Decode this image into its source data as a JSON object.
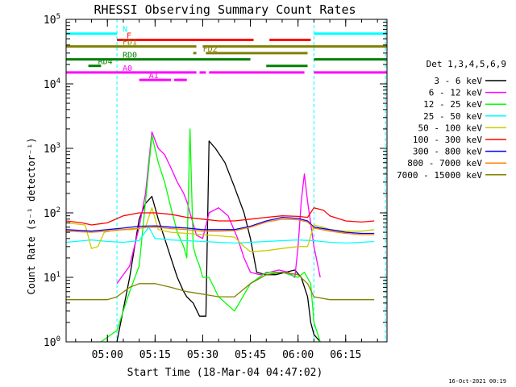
{
  "chart_data": {
    "type": "line",
    "title": "RHESSI Observing Summary Count Rates",
    "xlabel": "Start Time (18-Mar-04 04:47:02)",
    "ylabel": "Count Rate (s⁻¹ detector⁻¹)",
    "y_scale": "log",
    "xlim": [
      "04:47",
      "06:28"
    ],
    "ylim": [
      1,
      100000
    ],
    "x_ticks": [
      "05:00",
      "05:15",
      "05:30",
      "05:45",
      "06:00",
      "06:15"
    ],
    "y_ticks": [
      {
        "base": "10",
        "exp": "0"
      },
      {
        "base": "10",
        "exp": "1"
      },
      {
        "base": "10",
        "exp": "2"
      },
      {
        "base": "10",
        "exp": "3"
      },
      {
        "base": "10",
        "exp": "4"
      },
      {
        "base": "10",
        "exp": "5"
      }
    ],
    "legend_title": "Det 1,3,4,5,6,9",
    "legend_position": "right",
    "footer_date": "16-Oct-2021 00:19",
    "colors": {
      "night": "#00ffff",
      "flare": "#ff0000",
      "decimation": "#808000",
      "attenuator": "#ff00ff",
      "rad": "#008000"
    },
    "flags": [
      {
        "label": "N",
        "color": "#00ffff",
        "y": 60000,
        "segments": [
          [
            "04:47",
            "05:03"
          ],
          [
            "06:05",
            "06:28"
          ]
        ]
      },
      {
        "label": "F",
        "color": "#ff0000",
        "y": 48000,
        "segments": [
          [
            "05:03",
            "05:46"
          ],
          [
            "05:51",
            "06:04"
          ]
        ]
      },
      {
        "label": "FD1",
        "color": "#808000",
        "y": 38000,
        "segments": [
          [
            "04:47",
            "05:28"
          ],
          [
            "05:30",
            "06:28"
          ]
        ]
      },
      {
        "label": "FD2",
        "color": "#808000",
        "y": 30000,
        "segments": [
          [
            "05:27",
            "05:28"
          ],
          [
            "05:31",
            "06:03"
          ]
        ]
      },
      {
        "label": "RD0",
        "color": "#008000",
        "y": 24000,
        "segments": [
          [
            "04:47",
            "05:45"
          ],
          [
            "06:05",
            "06:28"
          ]
        ]
      },
      {
        "label": "RD4",
        "color": "#008000",
        "y": 19000,
        "segments": [
          [
            "04:54",
            "04:58"
          ],
          [
            "05:50",
            "06:03"
          ]
        ]
      },
      {
        "label": "A0",
        "color": "#ff00ff",
        "y": 15000,
        "segments": [
          [
            "04:47",
            "05:28"
          ],
          [
            "05:29",
            "05:31"
          ],
          [
            "05:32",
            "06:02"
          ],
          [
            "06:05",
            "06:28"
          ]
        ]
      },
      {
        "label": "A1",
        "color": "#ff00ff",
        "y": 11500,
        "segments": [
          [
            "05:10",
            "05:20"
          ],
          [
            "05:21",
            "05:25"
          ]
        ]
      }
    ],
    "series": [
      {
        "name": "3 - 6 keV",
        "color": "#000000",
        "x": [
          "04:47",
          "04:55",
          "04:58",
          "05:03",
          "05:07",
          "05:10",
          "05:12",
          "05:14",
          "05:16",
          "05:18",
          "05:20",
          "05:22",
          "05:24",
          "05:25",
          "05:27",
          "05:29",
          "05:31",
          "05:32",
          "05:34",
          "05:37",
          "05:40",
          "05:43",
          "05:45",
          "05:47",
          "05:50",
          "05:53",
          "05:56",
          "05:59",
          "06:01",
          "06:03",
          "06:04",
          "06:05",
          "06:07"
        ],
        "y": [
          null,
          null,
          null,
          1,
          10,
          80,
          140,
          180,
          80,
          40,
          20,
          10,
          6,
          5,
          4,
          2.5,
          2.5,
          1300,
          1000,
          600,
          250,
          100,
          40,
          12,
          11,
          11,
          12,
          13,
          10,
          5,
          2,
          1.3,
          1
        ]
      },
      {
        "name": "6 - 12 keV",
        "color": "#ff00ff",
        "x": [
          "04:47",
          "05:03",
          "05:07",
          "05:10",
          "05:12",
          "05:14",
          "05:16",
          "05:18",
          "05:20",
          "05:22",
          "05:24",
          "05:25",
          "05:26",
          "05:28",
          "05:30",
          "05:32",
          "05:35",
          "05:38",
          "05:41",
          "05:43",
          "05:45",
          "05:48",
          "05:51",
          "05:54",
          "05:57",
          "05:59",
          "06:00",
          "06:01",
          "06:02",
          "06:03",
          "06:05",
          "06:07"
        ],
        "y": [
          null,
          8,
          15,
          60,
          200,
          1800,
          1000,
          800,
          500,
          300,
          200,
          150,
          100,
          45,
          40,
          100,
          120,
          90,
          40,
          20,
          12,
          11,
          12,
          13,
          12,
          10,
          30,
          150,
          400,
          150,
          30,
          10
        ]
      },
      {
        "name": "12 - 25 keV",
        "color": "#00ff00",
        "x": [
          "04:47",
          "04:57",
          "04:58",
          "05:03",
          "05:07",
          "05:10",
          "05:12",
          "05:14",
          "05:16",
          "05:18",
          "05:20",
          "05:22",
          "05:24",
          "05:25",
          "05:26",
          "05:27",
          "05:28",
          "05:29",
          "05:30",
          "05:32",
          "05:35",
          "05:40",
          "05:45",
          "05:50",
          "05:55",
          "06:00",
          "06:02",
          "06:04",
          "06:05",
          "06:07"
        ],
        "y": [
          null,
          null,
          1,
          1.5,
          6,
          15,
          150,
          1600,
          600,
          300,
          120,
          50,
          30,
          20,
          2000,
          30,
          20,
          15,
          10,
          10,
          5,
          3,
          8,
          12,
          12,
          10,
          12,
          8,
          2,
          1
        ]
      },
      {
        "name": "25 - 50 keV",
        "color": "#00ffff",
        "x": [
          "04:47",
          "04:55",
          "05:00",
          "05:05",
          "05:10",
          "05:13",
          "05:15",
          "05:20",
          "05:25",
          "05:30",
          "05:35",
          "05:40",
          "05:45",
          "05:50",
          "05:55",
          "06:00",
          "06:05",
          "06:10",
          "06:15",
          "06:20",
          "06:24"
        ],
        "y": [
          35,
          38,
          36,
          35,
          37,
          60,
          40,
          38,
          37,
          36,
          35,
          34,
          35,
          36,
          37,
          38,
          37,
          35,
          34,
          35,
          36
        ]
      },
      {
        "name": "50 - 100 keV",
        "color": "#cccc00",
        "x": [
          "04:47",
          "04:53",
          "04:55",
          "04:57",
          "04:59",
          "05:03",
          "05:08",
          "05:12",
          "05:14",
          "05:16",
          "05:20",
          "05:25",
          "05:30",
          "05:35",
          "05:40",
          "05:43",
          "05:45",
          "05:50",
          "05:55",
          "06:00",
          "06:03",
          "06:05",
          "06:08",
          "06:10",
          "06:15",
          "06:20",
          "06:24"
        ],
        "y": [
          70,
          65,
          28,
          30,
          50,
          55,
          55,
          60,
          120,
          55,
          50,
          48,
          46,
          44,
          42,
          30,
          25,
          26,
          28,
          30,
          30,
          65,
          60,
          55,
          52,
          52,
          55
        ]
      },
      {
        "name": "100 - 300 keV",
        "color": "#ff0000",
        "x": [
          "04:47",
          "04:52",
          "04:55",
          "05:00",
          "05:05",
          "05:10",
          "05:15",
          "05:20",
          "05:25",
          "05:30",
          "05:35",
          "05:40",
          "05:45",
          "05:50",
          "05:55",
          "06:00",
          "06:03",
          "06:05",
          "06:08",
          "06:10",
          "06:15",
          "06:20",
          "06:24"
        ],
        "y": [
          75,
          70,
          65,
          70,
          90,
          100,
          100,
          95,
          85,
          80,
          75,
          75,
          80,
          85,
          90,
          88,
          85,
          120,
          110,
          90,
          75,
          72,
          75
        ]
      },
      {
        "name": "300 - 800 keV",
        "color": "#0000ff",
        "x": [
          "04:47",
          "04:55",
          "05:00",
          "05:05",
          "05:10",
          "05:15",
          "05:20",
          "05:25",
          "05:30",
          "05:35",
          "05:40",
          "05:45",
          "05:50",
          "05:55",
          "06:00",
          "06:03",
          "06:05",
          "06:10",
          "06:15",
          "06:20",
          "06:24"
        ],
        "y": [
          55,
          52,
          55,
          58,
          62,
          63,
          60,
          58,
          55,
          55,
          55,
          62,
          75,
          85,
          82,
          75,
          60,
          55,
          50,
          48,
          48
        ]
      },
      {
        "name": "800 - 7000 keV",
        "color": "#ff8000",
        "x": [
          "04:47",
          "04:55",
          "05:00",
          "05:05",
          "05:10",
          "05:15",
          "05:20",
          "05:25",
          "05:30",
          "05:35",
          "05:40",
          "05:45",
          "05:50",
          "05:55",
          "06:00",
          "06:03",
          "06:05",
          "06:10",
          "06:15",
          "06:20",
          "06:24"
        ],
        "y": [
          52,
          50,
          52,
          55,
          58,
          60,
          57,
          55,
          52,
          52,
          53,
          60,
          72,
          80,
          78,
          72,
          58,
          52,
          48,
          46,
          46
        ]
      },
      {
        "name": "7000 - 15000 keV",
        "color": "#808000",
        "x": [
          "04:47",
          "04:55",
          "05:00",
          "05:03",
          "05:07",
          "05:10",
          "05:15",
          "05:20",
          "05:25",
          "05:30",
          "05:35",
          "05:40",
          "05:45",
          "05:50",
          "05:55",
          "06:00",
          "06:03",
          "06:05",
          "06:10",
          "06:15",
          "06:20",
          "06:24"
        ],
        "y": [
          4.5,
          4.5,
          4.5,
          5,
          7,
          8,
          8,
          7,
          6,
          5.5,
          5,
          5,
          8,
          11,
          12,
          11,
          8,
          5,
          4.5,
          4.5,
          4.5,
          4.5
        ]
      }
    ]
  }
}
